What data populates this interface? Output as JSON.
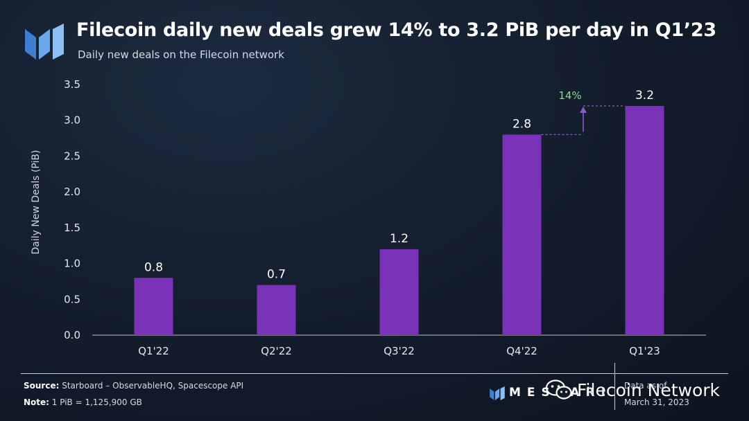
{
  "header": {
    "logo_icon": "messari-logo-icon",
    "title": "Filecoin daily new deals grew 14% to 3.2 PiB per day in Q1’23",
    "subtitle": "Daily new deals on the Filecoin network"
  },
  "chart_data": {
    "type": "bar",
    "categories": [
      "Q1'22",
      "Q2'22",
      "Q3'22",
      "Q4'22",
      "Q1'23"
    ],
    "values": [
      0.8,
      0.7,
      1.2,
      2.8,
      3.2
    ],
    "data_labels": [
      "0.8",
      "0.7",
      "1.2",
      "2.8",
      "3.2"
    ],
    "ylabel": "Daily New Deals (PiB)",
    "ylim": [
      0,
      3.5
    ],
    "yticks": [
      "0.0",
      "0.5",
      "1.0",
      "1.5",
      "2.0",
      "2.5",
      "3.0",
      "3.5"
    ],
    "grid": false,
    "bar_color": "#7a32b8",
    "annotation": {
      "text": "14%",
      "color": "#8fd68a",
      "from_category": "Q4'22",
      "to_category": "Q1'23",
      "from_value": 2.8,
      "to_value": 3.2
    }
  },
  "footer": {
    "source_label": "Source:",
    "source_text": "Starboard – ObservableHQ, Spacescope API",
    "note_label": "Note:",
    "note_text": "1 PiB = 1,125,900 GB",
    "brand": "MESSARI",
    "brand_icon": "messari-logo-icon",
    "date_label": "Data as of",
    "date_value": "March 31, 2023"
  },
  "watermark": {
    "icon": "wechat-icon",
    "text": "Filecoin Network"
  }
}
